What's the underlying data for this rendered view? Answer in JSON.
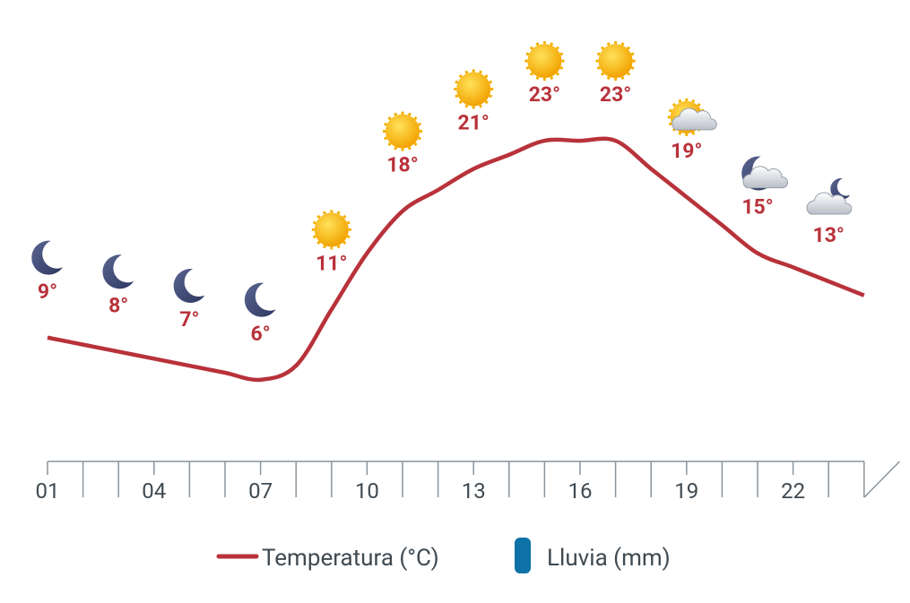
{
  "chart_data": {
    "type": "line",
    "categories": [
      "01",
      null,
      null,
      "04",
      null,
      null,
      "07",
      null,
      null,
      "10",
      null,
      null,
      "13",
      null,
      null,
      "16",
      null,
      null,
      "19",
      null,
      null,
      "22",
      null,
      null
    ],
    "series": [
      {
        "name": "Temperatura (°C)",
        "color": "#b8323a",
        "values": [
          9,
          8.5,
          8,
          7.5,
          7,
          6.5,
          6,
          7,
          11,
          15,
          18,
          19.5,
          21,
          22,
          23,
          23,
          23,
          21,
          19,
          17,
          15,
          14,
          13,
          12
        ],
        "value_labels": [
          "9°",
          null,
          "8°",
          null,
          "7°",
          null,
          "6°",
          null,
          "11°",
          null,
          "18°",
          null,
          "21°",
          null,
          "23°",
          null,
          "23°",
          null,
          "19°",
          null,
          "15°",
          null,
          "13°",
          null
        ]
      },
      {
        "name": "Lluvia (mm)",
        "color": "#0e72a8",
        "values": [
          0,
          0,
          0,
          0,
          0,
          0,
          0,
          0,
          0,
          0,
          0,
          0,
          0,
          0,
          0,
          0,
          0,
          0,
          0,
          0,
          0,
          0,
          0,
          0
        ]
      }
    ],
    "conditions": [
      "night",
      null,
      "night",
      null,
      "night",
      null,
      "night",
      null,
      "sun",
      null,
      "sun",
      null,
      "sun",
      null,
      "sun",
      null,
      "sun",
      null,
      "sun-cloud",
      null,
      "night-cloud",
      null,
      "cloud-night",
      null
    ],
    "ylim": [
      0,
      26
    ]
  }
}
